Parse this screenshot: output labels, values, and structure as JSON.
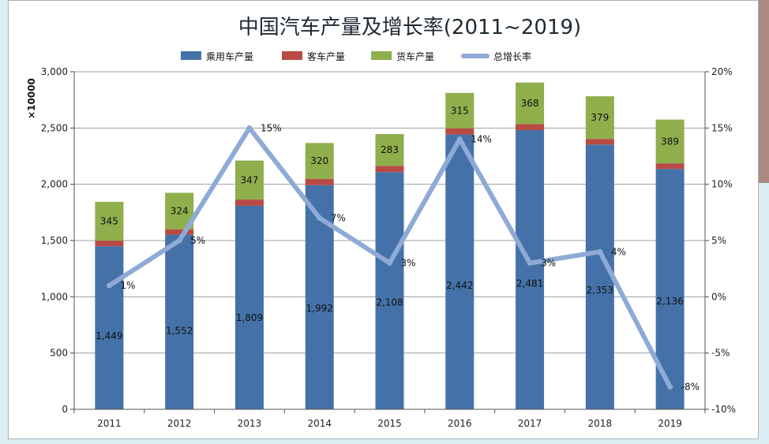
{
  "chart_data": {
    "type": "bar",
    "title": "中国汽车产量及增长率(2011~2019)",
    "unit_label": "×10000",
    "categories": [
      "2011",
      "2012",
      "2013",
      "2014",
      "2015",
      "2016",
      "2017",
      "2018",
      "2019"
    ],
    "series": [
      {
        "name": "乘用车产量",
        "kind": "stacked-bar",
        "axis": "left",
        "color": "#4472a8",
        "values": [
          1449,
          1552,
          1809,
          1992,
          2108,
          2442,
          2481,
          2353,
          2136
        ],
        "labels": [
          "1,449",
          "1,552",
          "1,809",
          "1,992",
          "2,108",
          "2,442",
          "2,481",
          "2,353",
          "2,136"
        ]
      },
      {
        "name": "客车产量",
        "kind": "stacked-bar",
        "axis": "left",
        "color": "#b84a46",
        "values": [
          50,
          48,
          55,
          55,
          55,
          55,
          55,
          50,
          50
        ]
      },
      {
        "name": "货车产量",
        "kind": "stacked-bar",
        "axis": "left",
        "color": "#8fae4c",
        "values": [
          345,
          324,
          347,
          320,
          283,
          315,
          368,
          379,
          389
        ],
        "labels": [
          "345",
          "324",
          "347",
          "320",
          "283",
          "315",
          "368",
          "379",
          "389"
        ]
      },
      {
        "name": "总增长率",
        "kind": "line",
        "axis": "right",
        "color": "#8eaad6",
        "values": [
          1,
          5,
          15,
          7,
          3,
          14,
          3,
          4,
          -8
        ],
        "labels": [
          "1%",
          "5%",
          "15%",
          "7%",
          "3%",
          "14%",
          "3%",
          "4%",
          "-8%"
        ]
      }
    ],
    "y_left": {
      "min": 0,
      "max": 3000,
      "ticks": [
        "0",
        "500",
        "1,000",
        "1,500",
        "2,000",
        "2,500",
        "3,000"
      ]
    },
    "y_right": {
      "min": -10,
      "max": 20,
      "ticks": [
        "-10%",
        "-5%",
        "0%",
        "5%",
        "10%",
        "15%",
        "20%"
      ]
    },
    "legend_position": "top",
    "grid": true
  }
}
